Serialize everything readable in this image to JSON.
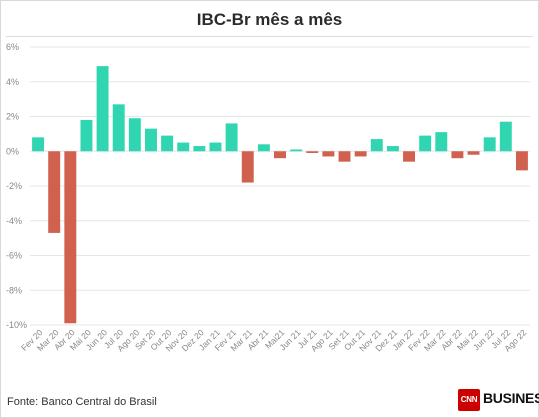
{
  "title": "IBC-Br mês a mês",
  "source": "Fonte: Banco Central do Brasil",
  "logo": {
    "mark": "CNN",
    "text": "BUSINESS",
    "dot": "."
  },
  "colors": {
    "positive": "#2fd6b0",
    "negative": "#d0614f",
    "grid": "#e6e6e6",
    "tick": "#888888"
  },
  "chart_data": {
    "type": "bar",
    "title": "IBC-Br mês a mês",
    "xlabel": "",
    "ylabel": "",
    "ylim": [
      -11,
      6
    ],
    "yticks": [
      6,
      4,
      2,
      0,
      -2,
      -4,
      -6,
      -8,
      -10
    ],
    "ytick_labels": [
      "6%",
      "4%",
      "2%",
      "0%",
      "-2%",
      "-4%",
      "-6%",
      "-8%",
      "-10%"
    ],
    "grid": "horizontal",
    "categories": [
      "Fev 20",
      "Mar 20",
      "Abr 20",
      "Mai 20",
      "Jun 20",
      "Jul 20",
      "Ago 20",
      "Set 20",
      "Out 20",
      "Nov 20",
      "Dez 20",
      "Jan 21",
      "Fev 21",
      "Mar 21",
      "Abr 21",
      "Mai21",
      "Jun 21",
      "Jul 21",
      "Ago 21",
      "Set 21",
      "Out 21",
      "Nov 21",
      "Dez 21",
      "Jan 22",
      "Fev 22",
      "Mar 22",
      "Abr 22",
      "Mai 22",
      "Jun 22",
      "Jul 22",
      "Ago 22"
    ],
    "values": [
      0.8,
      -4.7,
      -9.9,
      1.8,
      4.9,
      2.7,
      1.9,
      1.3,
      0.9,
      0.5,
      0.3,
      0.5,
      1.6,
      -1.8,
      0.4,
      -0.4,
      0.1,
      -0.1,
      -0.3,
      -0.6,
      -0.3,
      0.7,
      0.3,
      -0.6,
      0.9,
      1.1,
      -0.4,
      -0.2,
      0.8,
      1.7,
      -1.1
    ]
  }
}
